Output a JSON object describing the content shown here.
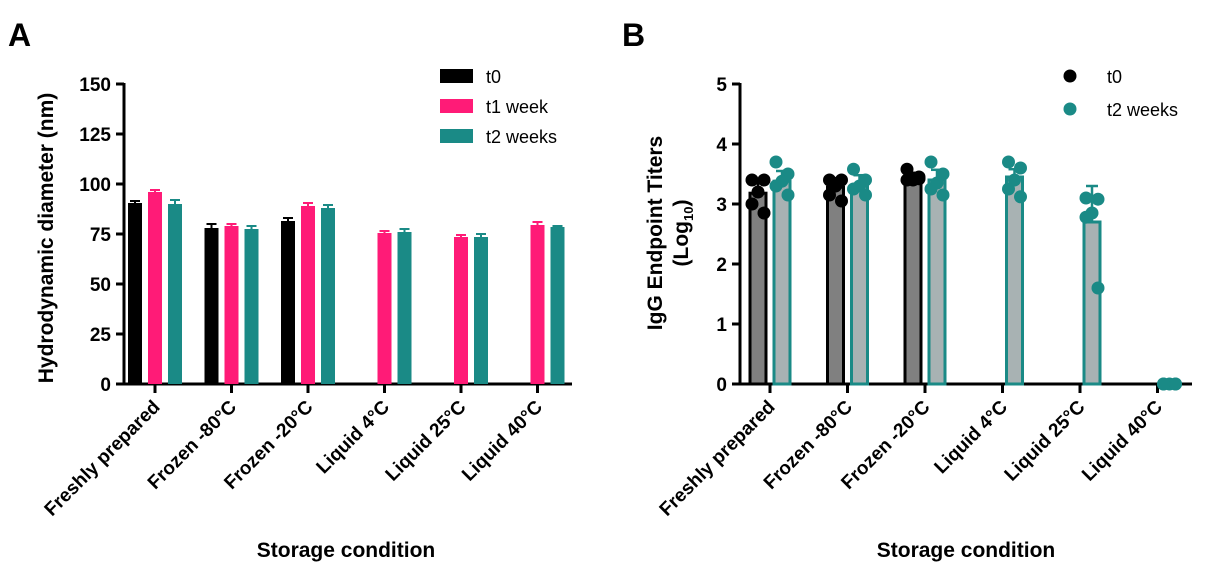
{
  "chart_data": [
    {
      "panel": "A",
      "type": "bar",
      "xlabel": "Storage condition",
      "ylabel": "Hydrodynamic diameter  (nm)",
      "ylim": [
        0,
        150
      ],
      "yticks": [
        "0",
        "25",
        "50",
        "75",
        "100",
        "125",
        "150"
      ],
      "categories": [
        "Freshly prepared",
        "Frozen -80°C",
        "Frozen -20°C",
        "Liquid 4°C",
        "Liquid 25°C",
        "Liquid 40°C"
      ],
      "legend_position": "top-right",
      "series": [
        {
          "name": "t0",
          "color": "#000000",
          "values": [
            90.5,
            78,
            81.5,
            null,
            null,
            null
          ],
          "errors": [
            1,
            2,
            1.5,
            null,
            null,
            null
          ]
        },
        {
          "name": "t1 week",
          "color": "#ff1b77",
          "values": [
            96,
            79,
            89,
            75.5,
            73.5,
            79.5
          ],
          "errors": [
            1,
            1,
            1.5,
            1,
            1,
            1.5
          ]
        },
        {
          "name": "t2 weeks",
          "color": "#1a8a86",
          "values": [
            90,
            77.5,
            88,
            76,
            73.5,
            78.5
          ],
          "errors": [
            2,
            1.5,
            1.5,
            1.5,
            1.5,
            0.5
          ]
        }
      ]
    },
    {
      "panel": "B",
      "type": "bar",
      "xlabel": "Storage condition",
      "ylabel_main": "IgG Endpoint Titers",
      "ylabel_sub_prefix": "(Log",
      "ylabel_sub_script": "10",
      "ylabel_sub_suffix": ")",
      "ylim": [
        0,
        5
      ],
      "yticks": [
        "0",
        "1",
        "2",
        "3",
        "4",
        "5"
      ],
      "categories": [
        "Freshly prepared",
        "Frozen -80°C",
        "Frozen -20°C",
        "Liquid 4°C",
        "Liquid 25°C",
        "Liquid 40°C"
      ],
      "legend_position": "top-right",
      "series": [
        {
          "name": "t0",
          "color": "#000000",
          "fill": "#808080",
          "values": [
            3.18,
            3.28,
            3.45,
            null,
            null,
            null
          ],
          "errors": [
            0.2,
            0.15,
            0.07,
            null,
            null,
            null
          ],
          "points": [
            [
              3.4,
              3.4,
              3.2,
              3.0,
              2.85
            ],
            [
              3.4,
              3.4,
              3.3,
              3.15,
              3.05
            ],
            [
              3.58,
              3.45,
              3.4,
              3.4,
              3.42
            ],
            [],
            [],
            []
          ]
        },
        {
          "name": "t2 weeks",
          "color": "#1a8a86",
          "fill": "#a8b2b3",
          "values": [
            3.38,
            3.3,
            3.4,
            3.45,
            2.7,
            0.0
          ],
          "errors": [
            0.17,
            0.18,
            0.17,
            0.13,
            0.6,
            0.0
          ],
          "points": [
            [
              3.7,
              3.5,
              3.38,
              3.3,
              3.15
            ],
            [
              3.58,
              3.4,
              3.3,
              3.25,
              3.15
            ],
            [
              3.7,
              3.5,
              3.35,
              3.25,
              3.15
            ],
            [
              3.7,
              3.6,
              3.4,
              3.25,
              3.12
            ],
            [
              3.1,
              3.08,
              2.85,
              2.78,
              1.6
            ],
            [
              0,
              0,
              0,
              0,
              0
            ]
          ]
        }
      ]
    }
  ]
}
